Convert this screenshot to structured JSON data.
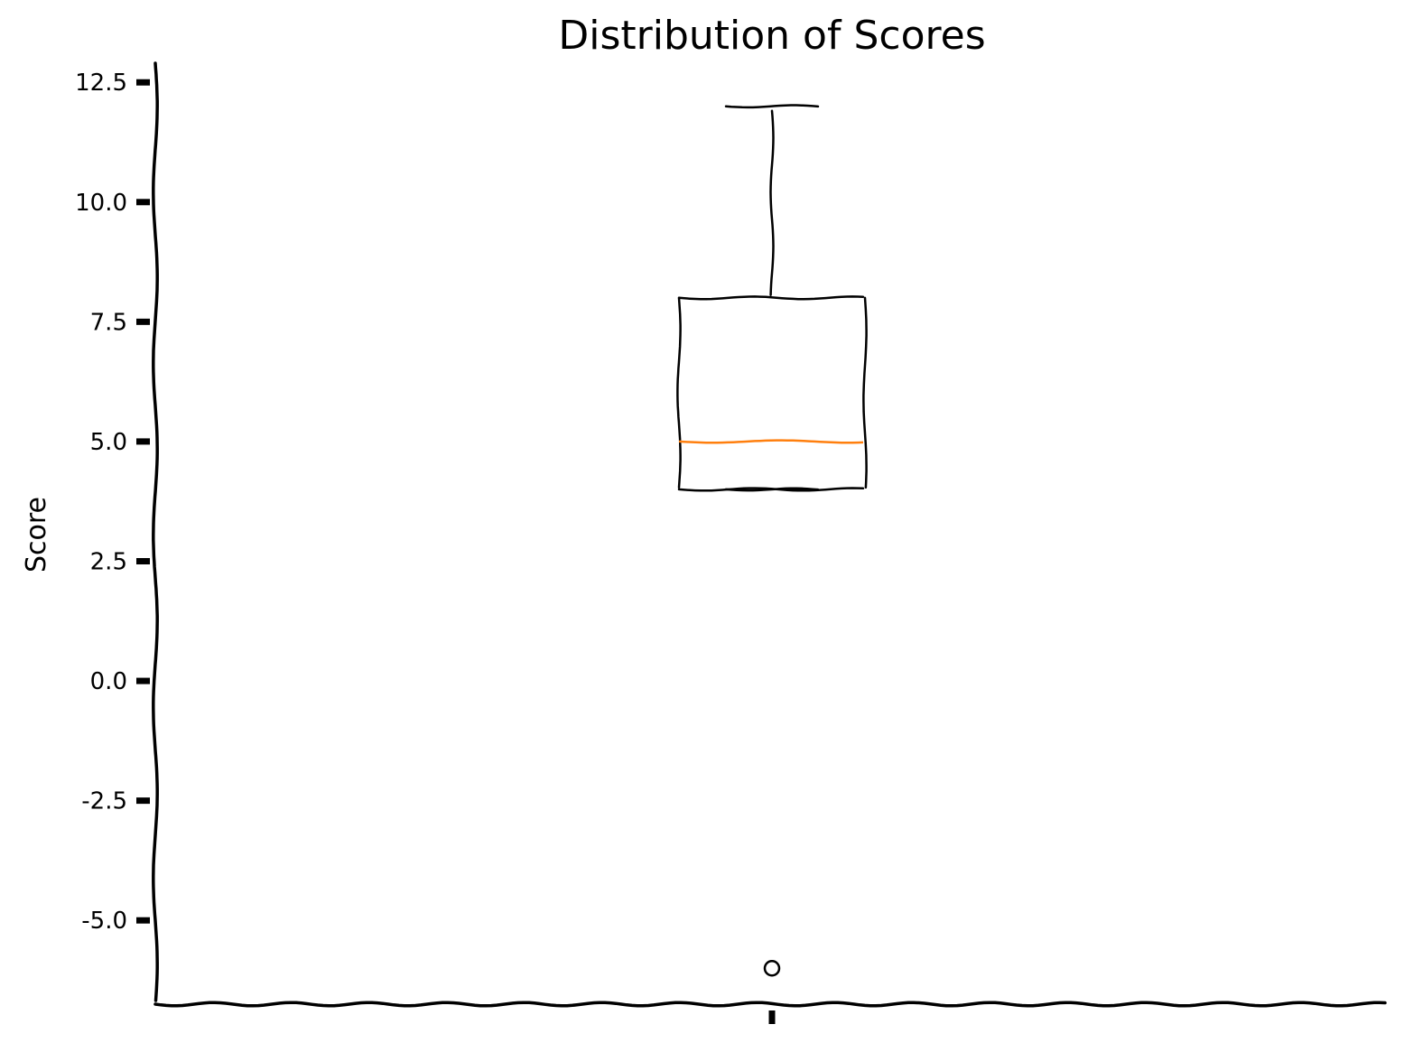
{
  "chart_data": {
    "type": "box",
    "title": "Distribution of Scores",
    "xlabel": "",
    "ylabel": "Score",
    "ylim": [
      -6.75,
      12.9
    ],
    "yticks": [
      -5.0,
      -2.5,
      0.0,
      2.5,
      5.0,
      7.5,
      10.0,
      12.5
    ],
    "ytick_labels": [
      "-5.0",
      "-2.5",
      "0.0",
      "2.5",
      "5.0",
      "7.5",
      "10.0",
      "12.5"
    ],
    "xtick_labels": [
      ""
    ],
    "grid": false,
    "style": "xkcd",
    "series": [
      {
        "whisker_low": 4.0,
        "q1": 4.0,
        "median": 5.0,
        "q3": 8.0,
        "whisker_high": 12.0,
        "outliers": [
          -6.0
        ]
      }
    ],
    "colors": {
      "box": "#000000",
      "median": "#ff7f0e",
      "axis": "#000000"
    }
  }
}
